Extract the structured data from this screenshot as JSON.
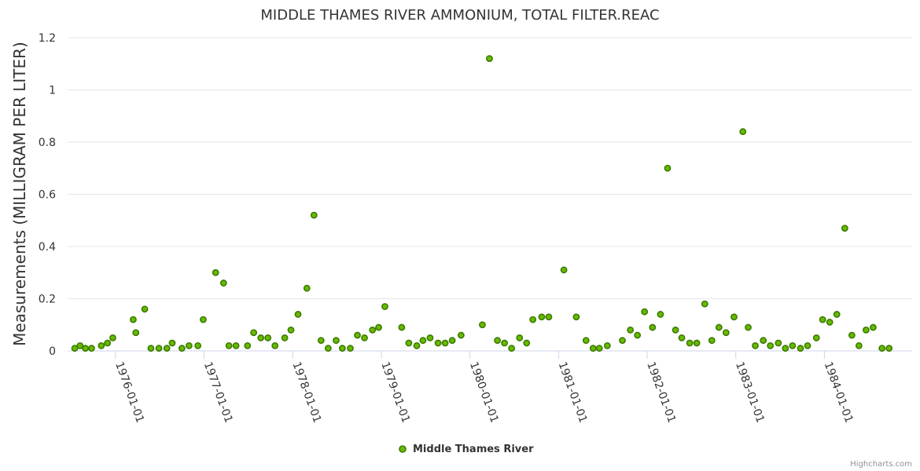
{
  "chart_data": {
    "type": "scatter",
    "title": "MIDDLE THAMES RIVER AMMONIUM, TOTAL FILTER.REAC",
    "xlabel": "",
    "ylabel": "Measurements (MILLIGRAM PER LITER)",
    "ylim": [
      0,
      1.2
    ],
    "yticks": [
      0,
      0.2,
      0.4,
      0.6,
      0.8,
      1,
      1.2
    ],
    "ytick_labels": [
      "0",
      "0.2",
      "0.4",
      "0.6",
      "0.8",
      "1",
      "1.2"
    ],
    "xlim": [
      1975.46,
      1984.99
    ],
    "xticks": [
      1976,
      1977,
      1978,
      1979,
      1980,
      1981,
      1982,
      1983,
      1984
    ],
    "xtick_labels": [
      "1976-01-01",
      "1977-01-01",
      "1978-01-01",
      "1979-01-01",
      "1980-01-01",
      "1981-01-01",
      "1982-01-01",
      "1983-01-01",
      "1984-01-01"
    ],
    "grid": "horizontal",
    "legend_position": "bottom-center",
    "series": [
      {
        "name": "Middle Thames River",
        "color": "#66bb00",
        "edge_color": "#3d7a00",
        "points": [
          {
            "x": 1975.54,
            "y": 0.01
          },
          {
            "x": 1975.6,
            "y": 0.02
          },
          {
            "x": 1975.66,
            "y": 0.01
          },
          {
            "x": 1975.73,
            "y": 0.01
          },
          {
            "x": 1975.84,
            "y": 0.02
          },
          {
            "x": 1975.91,
            "y": 0.03
          },
          {
            "x": 1975.97,
            "y": 0.05
          },
          {
            "x": 1976.2,
            "y": 0.12
          },
          {
            "x": 1976.23,
            "y": 0.07
          },
          {
            "x": 1976.33,
            "y": 0.16
          },
          {
            "x": 1976.4,
            "y": 0.01
          },
          {
            "x": 1976.49,
            "y": 0.01
          },
          {
            "x": 1976.58,
            "y": 0.01
          },
          {
            "x": 1976.64,
            "y": 0.03
          },
          {
            "x": 1976.75,
            "y": 0.01
          },
          {
            "x": 1976.83,
            "y": 0.02
          },
          {
            "x": 1976.93,
            "y": 0.02
          },
          {
            "x": 1976.99,
            "y": 0.12
          },
          {
            "x": 1977.13,
            "y": 0.3
          },
          {
            "x": 1977.22,
            "y": 0.26
          },
          {
            "x": 1977.28,
            "y": 0.02
          },
          {
            "x": 1977.36,
            "y": 0.02
          },
          {
            "x": 1977.49,
            "y": 0.02
          },
          {
            "x": 1977.56,
            "y": 0.07
          },
          {
            "x": 1977.64,
            "y": 0.05
          },
          {
            "x": 1977.72,
            "y": 0.05
          },
          {
            "x": 1977.8,
            "y": 0.02
          },
          {
            "x": 1977.91,
            "y": 0.05
          },
          {
            "x": 1977.98,
            "y": 0.08
          },
          {
            "x": 1978.06,
            "y": 0.14
          },
          {
            "x": 1978.16,
            "y": 0.24
          },
          {
            "x": 1978.24,
            "y": 0.52
          },
          {
            "x": 1978.32,
            "y": 0.04
          },
          {
            "x": 1978.4,
            "y": 0.01
          },
          {
            "x": 1978.49,
            "y": 0.04
          },
          {
            "x": 1978.56,
            "y": 0.01
          },
          {
            "x": 1978.65,
            "y": 0.01
          },
          {
            "x": 1978.73,
            "y": 0.06
          },
          {
            "x": 1978.81,
            "y": 0.05
          },
          {
            "x": 1978.9,
            "y": 0.08
          },
          {
            "x": 1978.97,
            "y": 0.09
          },
          {
            "x": 1979.04,
            "y": 0.17
          },
          {
            "x": 1979.23,
            "y": 0.09
          },
          {
            "x": 1979.31,
            "y": 0.03
          },
          {
            "x": 1979.4,
            "y": 0.02
          },
          {
            "x": 1979.47,
            "y": 0.04
          },
          {
            "x": 1979.55,
            "y": 0.05
          },
          {
            "x": 1979.64,
            "y": 0.03
          },
          {
            "x": 1979.72,
            "y": 0.03
          },
          {
            "x": 1979.8,
            "y": 0.04
          },
          {
            "x": 1979.9,
            "y": 0.06
          },
          {
            "x": 1980.14,
            "y": 0.1
          },
          {
            "x": 1980.22,
            "y": 1.12
          },
          {
            "x": 1980.31,
            "y": 0.04
          },
          {
            "x": 1980.39,
            "y": 0.03
          },
          {
            "x": 1980.47,
            "y": 0.01
          },
          {
            "x": 1980.56,
            "y": 0.05
          },
          {
            "x": 1980.64,
            "y": 0.03
          },
          {
            "x": 1980.71,
            "y": 0.12
          },
          {
            "x": 1980.81,
            "y": 0.13
          },
          {
            "x": 1980.89,
            "y": 0.13
          },
          {
            "x": 1981.06,
            "y": 0.31
          },
          {
            "x": 1981.2,
            "y": 0.13
          },
          {
            "x": 1981.31,
            "y": 0.04
          },
          {
            "x": 1981.39,
            "y": 0.01
          },
          {
            "x": 1981.46,
            "y": 0.01
          },
          {
            "x": 1981.55,
            "y": 0.02
          },
          {
            "x": 1981.72,
            "y": 0.04
          },
          {
            "x": 1981.81,
            "y": 0.08
          },
          {
            "x": 1981.89,
            "y": 0.06
          },
          {
            "x": 1981.97,
            "y": 0.15
          },
          {
            "x": 1982.06,
            "y": 0.09
          },
          {
            "x": 1982.15,
            "y": 0.14
          },
          {
            "x": 1982.23,
            "y": 0.7
          },
          {
            "x": 1982.32,
            "y": 0.08
          },
          {
            "x": 1982.39,
            "y": 0.05
          },
          {
            "x": 1982.48,
            "y": 0.03
          },
          {
            "x": 1982.56,
            "y": 0.03
          },
          {
            "x": 1982.65,
            "y": 0.18
          },
          {
            "x": 1982.73,
            "y": 0.04
          },
          {
            "x": 1982.81,
            "y": 0.09
          },
          {
            "x": 1982.89,
            "y": 0.07
          },
          {
            "x": 1982.98,
            "y": 0.13
          },
          {
            "x": 1983.08,
            "y": 0.84
          },
          {
            "x": 1983.14,
            "y": 0.09
          },
          {
            "x": 1983.22,
            "y": 0.02
          },
          {
            "x": 1983.31,
            "y": 0.04
          },
          {
            "x": 1983.39,
            "y": 0.02
          },
          {
            "x": 1983.48,
            "y": 0.03
          },
          {
            "x": 1983.56,
            "y": 0.01
          },
          {
            "x": 1983.64,
            "y": 0.02
          },
          {
            "x": 1983.73,
            "y": 0.01
          },
          {
            "x": 1983.81,
            "y": 0.02
          },
          {
            "x": 1983.91,
            "y": 0.05
          },
          {
            "x": 1983.98,
            "y": 0.12
          },
          {
            "x": 1984.06,
            "y": 0.11
          },
          {
            "x": 1984.14,
            "y": 0.14
          },
          {
            "x": 1984.23,
            "y": 0.47
          },
          {
            "x": 1984.31,
            "y": 0.06
          },
          {
            "x": 1984.39,
            "y": 0.02
          },
          {
            "x": 1984.47,
            "y": 0.08
          },
          {
            "x": 1984.55,
            "y": 0.09
          },
          {
            "x": 1984.65,
            "y": 0.01
          },
          {
            "x": 1984.73,
            "y": 0.01
          }
        ]
      }
    ]
  },
  "credits": "Highcharts.com"
}
